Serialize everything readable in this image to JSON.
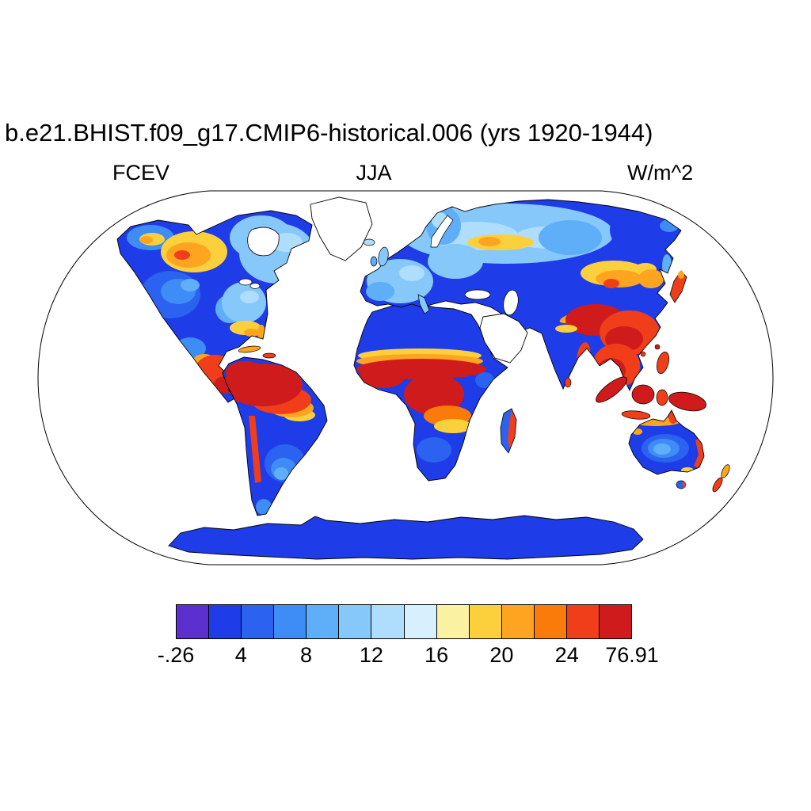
{
  "title": "b.e21.BHIST.f09_g17.CMIP6-historical.006 (yrs 1920-1944)",
  "labels": {
    "variable": "FCEV",
    "season": "JJA",
    "units": "W/m^2"
  },
  "chart_data": {
    "type": "heatmap",
    "title": "b.e21.BHIST.f09_g17.CMIP6-historical.006 (yrs 1920-1944)",
    "variable": "FCEV",
    "season": "JJA",
    "units": "W/m^2",
    "projection": "Robinson-style global map, white oceans, Greenland and Arabian Peninsula masked white",
    "colorbar": {
      "orientation": "horizontal",
      "min": -0.26,
      "max": 76.91,
      "tick_labels": [
        "-.26",
        "4",
        "8",
        "12",
        "16",
        "20",
        "24",
        "76.91"
      ],
      "colors": [
        "#5B30CE",
        "#1E3CE8",
        "#2B62F0",
        "#3E8CF5",
        "#5FAEF8",
        "#86C8FA",
        "#AFDEFC",
        "#D8F0FD",
        "#FBF1A2",
        "#FCD03C",
        "#FDA520",
        "#FA7A0A",
        "#F03E1A",
        "#CF1B1B"
      ]
    },
    "regions": [
      {
        "region": "Antarctica, Sahara, central/eastern South America, southern & eastern Africa, most of India, Australian interior, Kazakhstan, Iran",
        "reading": "low, about 0-4 W/m^2 (deep blue)"
      },
      {
        "region": "Europe, western Russia, central Siberia, eastern North America, western United States",
        "reading": "moderate, about 6-14 W/m^2 (light blues)"
      },
      {
        "region": "Alaska and northwest Canada, west Siberia, Mongolia / northeast China, southeastern United States",
        "reading": "high, about 14-22 W/m^2 (yellow-orange)"
      },
      {
        "region": "Northwest Amazon, Sahel and Congo basin, Tibet / south China, Indochina, Indonesia, New Guinea, Central America, Japan",
        "reading": "very high, > 24 W/m^2 (red / dark red)"
      }
    ]
  },
  "map": {
    "ocean_color": "#FFFFFF",
    "coastline_color": "#000000",
    "base_land_color": "#1E3CE8"
  }
}
